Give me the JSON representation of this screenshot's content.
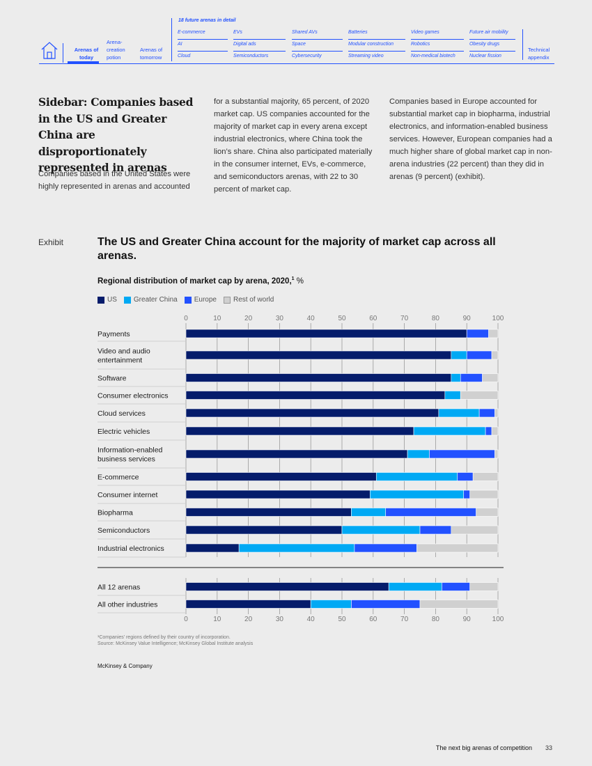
{
  "nav": {
    "tabs": [
      {
        "label": "Arenas of today"
      },
      {
        "label": "Arena-creation potion"
      },
      {
        "label": "Arenas of tomorrow"
      }
    ],
    "detail_title": "18 future arenas in detail",
    "arena_columns": [
      [
        "E-commerce",
        "AI",
        "Cloud"
      ],
      [
        "EVs",
        "Digital ads",
        "Semiconductors"
      ],
      [
        "Shared AVs",
        "Space",
        "Cybersecurity"
      ],
      [
        "Batteries",
        "Modular construction",
        "Streaming video"
      ],
      [
        "Video games",
        "Robotics",
        "Non-medical biotech"
      ],
      [
        "Future air mobility",
        "Obesity drugs",
        "Nuclear fission"
      ]
    ],
    "appendix": "Technical appendix"
  },
  "sidebar": {
    "title": "Sidebar: Companies based in the US and Greater China are disproportionately represented in arenas",
    "col1": "Companies based in the United States were highly represented in arenas and accounted",
    "col2": "for a substantial majority, 65 percent, of 2020 market cap. US companies accounted for the majority of market cap in every arena except industrial electronics, where China took the lion’s share. China also participated materially in the consumer internet, EVs, e-commerce, and semiconductors arenas, with 22 to 30 percent of market cap.",
    "col3": "Companies based in Europe accounted for substantial market cap in biopharma, industrial electronics, and information-enabled business services. However, European companies had a much higher share of global market cap in non-arena industries (22 percent) than they did in arenas (9 percent) (exhibit)."
  },
  "exhibit": {
    "label": "Exhibit",
    "title": "The US and Greater China account for the majority of market cap across all arenas."
  },
  "chart_data": {
    "type": "bar",
    "orientation": "horizontal",
    "stacked": true,
    "subtitle": "Regional distribution of market cap by arena, 2020,",
    "footnote_marker": "1",
    "unit": "%",
    "xlim": [
      0,
      100
    ],
    "xticks": [
      0,
      10,
      20,
      30,
      40,
      50,
      60,
      70,
      80,
      90,
      100
    ],
    "legend_position": "top-left",
    "colors": {
      "US": "#051c6b",
      "Greater China": "#00a9f4",
      "Europe": "#2251ff",
      "Rest of world": "#d0d0d0"
    },
    "series_names": [
      "US",
      "Greater China",
      "Europe",
      "Rest of world"
    ],
    "categories": [
      "Payments",
      "Video and audio entertainment",
      "Software",
      "Consumer electronics",
      "Cloud services",
      "Electric vehicles",
      "Information-enabled business services",
      "E-commerce",
      "Consumer internet",
      "Biopharma",
      "Semiconductors",
      "Industrial electronics"
    ],
    "series": [
      {
        "name": "US",
        "values": [
          90,
          85,
          85,
          83,
          81,
          73,
          71,
          61,
          59,
          53,
          50,
          17
        ]
      },
      {
        "name": "Greater China",
        "values": [
          0,
          5,
          3,
          5,
          13,
          23,
          7,
          26,
          30,
          11,
          25,
          37
        ]
      },
      {
        "name": "Europe",
        "values": [
          7,
          8,
          7,
          0,
          5,
          2,
          21,
          5,
          2,
          29,
          10,
          20
        ]
      },
      {
        "name": "Rest of world",
        "values": [
          3,
          2,
          5,
          12,
          1,
          2,
          1,
          8,
          9,
          7,
          15,
          26
        ]
      }
    ],
    "totals": {
      "categories": [
        "All 12 arenas",
        "All other industries"
      ],
      "series": [
        {
          "name": "US",
          "values": [
            65,
            40
          ]
        },
        {
          "name": "Greater China",
          "values": [
            17,
            13
          ]
        },
        {
          "name": "Europe",
          "values": [
            9,
            22
          ]
        },
        {
          "name": "Rest of world",
          "values": [
            9,
            25
          ]
        }
      ]
    }
  },
  "footnote": {
    "line1": "¹Companies’ regions defined by their country of incorporation.",
    "line2": "Source: McKinsey Value Intelligence; McKinsey Global Institute analysis"
  },
  "brand": "McKinsey & Company",
  "footer": {
    "title": "The next big arenas of competition",
    "page": "33"
  }
}
